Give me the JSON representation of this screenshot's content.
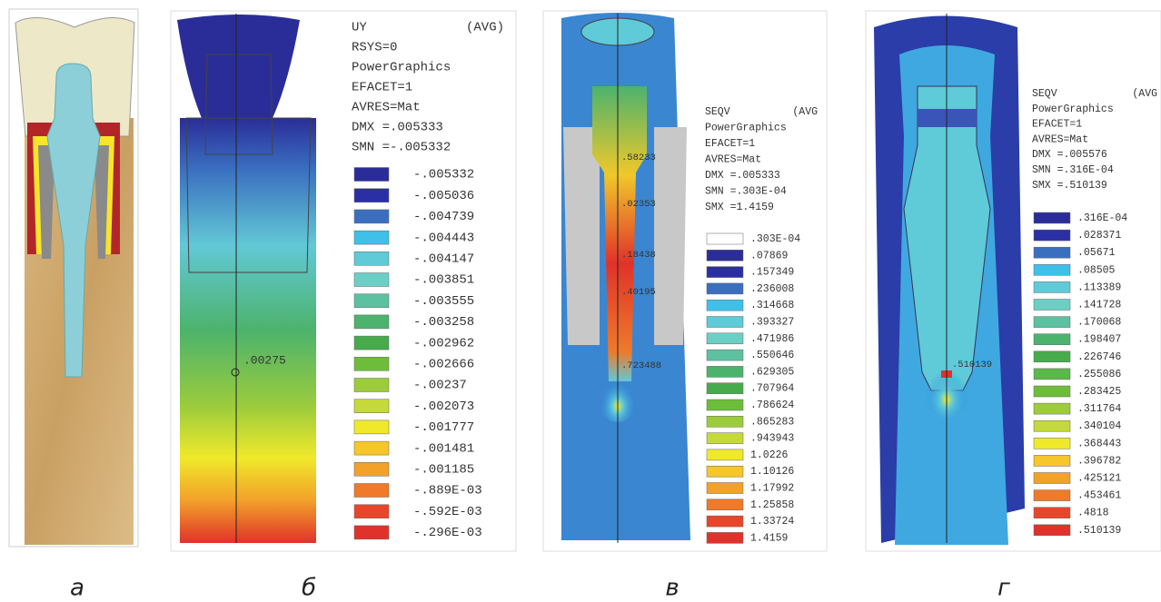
{
  "panels": [
    {
      "label": "а"
    },
    {
      "label": "б",
      "title": "UY",
      "avg": "(AVG)",
      "header": [
        "RSYS=0",
        "PowerGraphics",
        "EFACET=1",
        "AVRES=Mat",
        "DMX =.005333",
        "SMN =-.005332"
      ],
      "legend": [
        "-.005332",
        "-.005036",
        "-.004739",
        "-.004443",
        "-.004147",
        "-.003851",
        "-.003555",
        "-.003258",
        "-.002962",
        "-.002666",
        "-.00237",
        "-.002073",
        "-.001777",
        "-.001481",
        "-.001185",
        "-.889E-03",
        "-.592E-03",
        "-.296E-03"
      ],
      "annotations": [
        ".00275"
      ]
    },
    {
      "label": "в",
      "title": "SEQV",
      "avg": "(AVG",
      "header": [
        "PowerGraphics",
        "EFACET=1",
        "AVRES=Mat",
        "DMX =.005333",
        "SMN =.303E-04",
        "SMX =1.4159"
      ],
      "legend": [
        ".303E-04",
        ".07869",
        ".157349",
        ".236008",
        ".314668",
        ".393327",
        ".471986",
        ".550646",
        ".629305",
        ".707964",
        ".786624",
        ".865283",
        ".943943",
        "1.0226",
        "1.10126",
        "1.17992",
        "1.25858",
        "1.33724",
        "1.4159"
      ],
      "annotations": [
        ".58233",
        ".02353",
        ".18438",
        ".40195",
        ".723488"
      ]
    },
    {
      "label": "г",
      "title": "SEQV",
      "avg": "(AVG",
      "header": [
        "PowerGraphics",
        "EFACET=1",
        "AVRES=Mat",
        "DMX =.005576",
        "SMN =.316E-04",
        "SMX =.510139"
      ],
      "legend": [
        ".316E-04",
        ".028371",
        ".05671",
        ".08505",
        ".113389",
        ".141728",
        ".170068",
        ".198407",
        ".226746",
        ".255086",
        ".283425",
        ".311764",
        ".340104",
        ".368443",
        ".396782",
        ".425121",
        ".453461",
        ".4818",
        ".510139"
      ],
      "annotations": [
        ".510139"
      ]
    }
  ]
}
